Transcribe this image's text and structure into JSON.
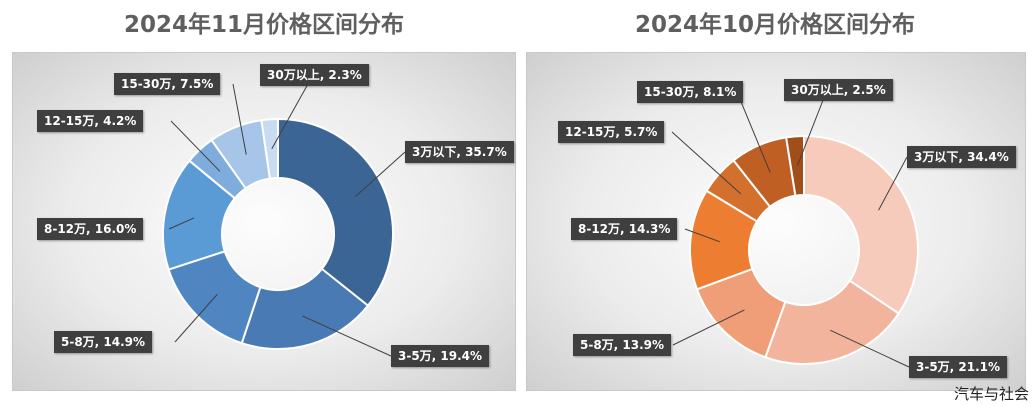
{
  "chart_data": [
    {
      "type": "donut",
      "title": "2024年11月价格区间分布",
      "categories": [
        "3万以下",
        "3-5万",
        "5-8万",
        "8-12万",
        "12-15万",
        "15-30万",
        "30万以上"
      ],
      "values": [
        35.7,
        19.4,
        14.9,
        16.0,
        4.2,
        7.5,
        2.3
      ],
      "unit": "%",
      "labels": [
        "3万以下, 35.7%",
        "3-5万, 19.4%",
        "5-8万, 14.9%",
        "8-12万, 16.0%",
        "12-15万, 4.2%",
        "15-30万, 7.5%",
        "30万以上, 2.3%"
      ],
      "colors": [
        "#3b6594",
        "#4a7ab3",
        "#4f86c2",
        "#5b9bd5",
        "#7eacdd",
        "#a6c5e8",
        "#c8dbf1"
      ]
    },
    {
      "type": "donut",
      "title": "2024年10月价格区间分布",
      "categories": [
        "3万以下",
        "3-5万",
        "5-8万",
        "8-12万",
        "12-15万",
        "15-30万",
        "30万以上"
      ],
      "values": [
        34.4,
        21.1,
        13.9,
        14.3,
        5.7,
        8.1,
        2.5
      ],
      "unit": "%",
      "labels": [
        "3万以下, 34.4%",
        "3-5万, 21.1%",
        "5-8万, 13.9%",
        "8-12万, 14.3%",
        "12-15万, 5.7%",
        "15-30万, 8.1%",
        "30万以上, 2.5%"
      ],
      "colors": [
        "#f6cbbc",
        "#f3b49d",
        "#ef9e77",
        "#ed7d31",
        "#d3702d",
        "#bf5f24",
        "#a04f1b"
      ]
    }
  ],
  "source_text": "汽车与社会"
}
